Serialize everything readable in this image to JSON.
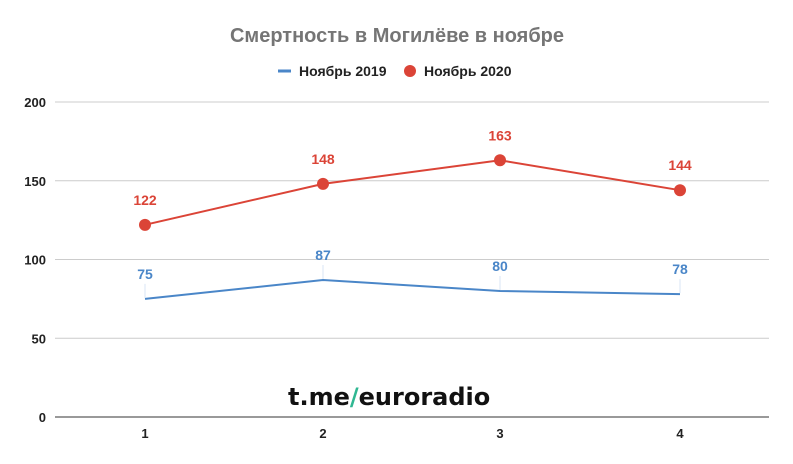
{
  "chart_data": {
    "type": "line",
    "title": "Смертность в Могилёве в ноябре",
    "xlabel": "",
    "ylabel": "",
    "categories": [
      "1",
      "2",
      "3",
      "4"
    ],
    "ylim": [
      0,
      200
    ],
    "yticks": [
      "0",
      "50",
      "100",
      "150",
      "200"
    ],
    "grid": true,
    "legend_position": "top",
    "series": [
      {
        "name": "Ноябрь 2019",
        "values": [
          75,
          87,
          80,
          78
        ],
        "color": "#4a86c8",
        "markers": false
      },
      {
        "name": "Ноябрь 2020",
        "values": [
          122,
          148,
          163,
          144
        ],
        "color": "#db4437",
        "markers": true
      }
    ]
  },
  "watermark": {
    "prefix": "t.me",
    "slash": "/",
    "suffix": "euroradio",
    "slash_color": "#2fb792"
  }
}
